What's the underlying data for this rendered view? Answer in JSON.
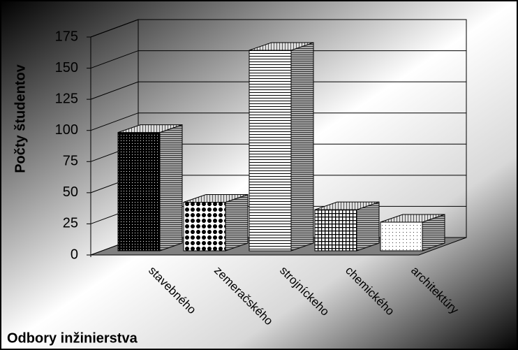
{
  "chart_data": {
    "type": "bar3d",
    "y_label": "Počty študentov",
    "x_label": "Odbory inžinierstva",
    "categories": [
      "stavebného",
      "zemeračského",
      "strojníckeho",
      "chemického",
      "architektúry"
    ],
    "values": [
      95,
      39,
      161,
      33,
      23
    ],
    "ylim": [
      0,
      175
    ],
    "yticks": [
      0,
      25,
      50,
      75,
      100,
      125,
      150,
      175
    ],
    "grid": true
  }
}
